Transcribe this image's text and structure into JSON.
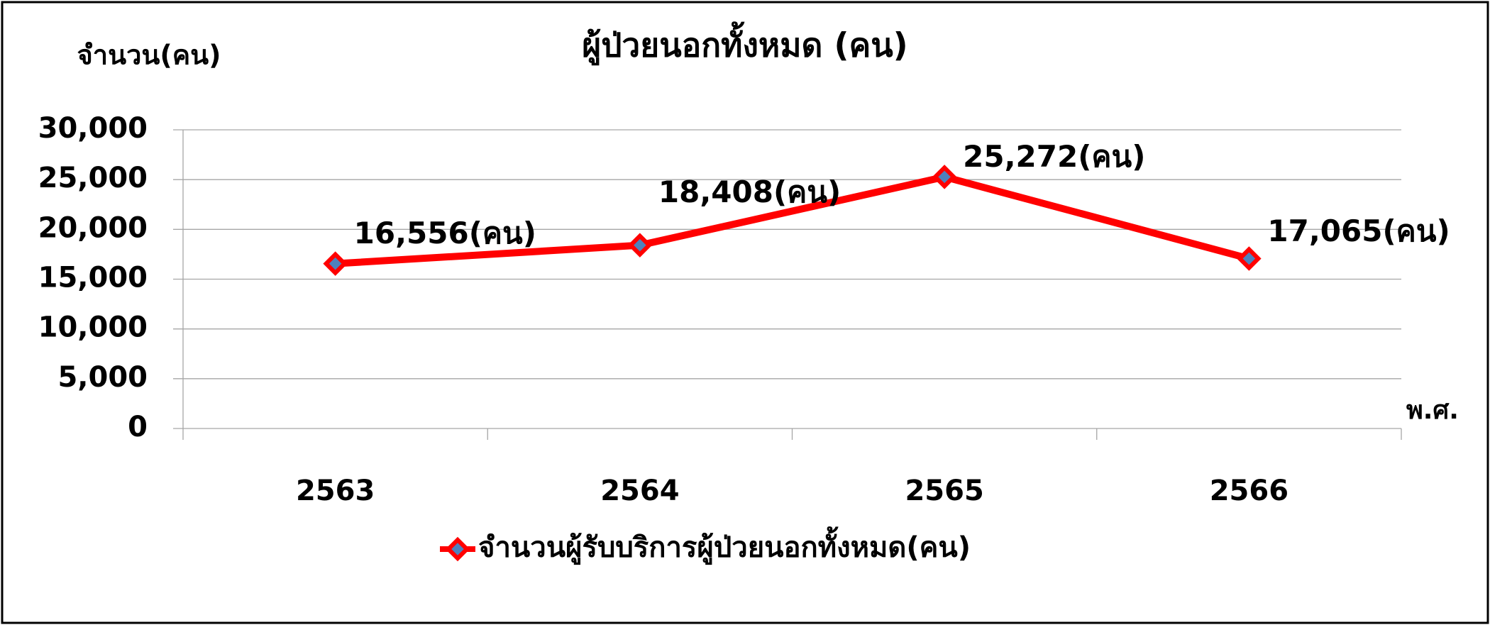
{
  "chart_data": {
    "type": "line",
    "title": "ผู้ป่วยนอกทั้งหมด (คน)",
    "y_label": "จำนวน(คน)",
    "x_label": "พ.ศ.",
    "categories": [
      "2563",
      "2564",
      "2565",
      "2566"
    ],
    "series": [
      {
        "name": "จำนวนผู้รับบริการผู้ป่วยนอกทั้งหมด(คน)",
        "color": "#ff0000",
        "values": [
          16556,
          18408,
          25272,
          17065
        ],
        "value_labels": [
          "16,556(คน)",
          "18,408(คน)",
          "25,272(คน)",
          "17,065(คน)"
        ]
      }
    ],
    "ylim": [
      0,
      30000
    ],
    "yticks": [
      0,
      {
        "value": 5000,
        "label": "5,000"
      },
      {
        "value": 10000,
        "label": "10,000"
      },
      {
        "value": 15000,
        "label": "15,000"
      },
      {
        "value": 20000,
        "label": "20,000"
      },
      {
        "value": 25000,
        "label": "25,000"
      },
      {
        "value": 30000,
        "label": "30,000"
      }
    ],
    "grid": true,
    "legend": "bottom"
  }
}
